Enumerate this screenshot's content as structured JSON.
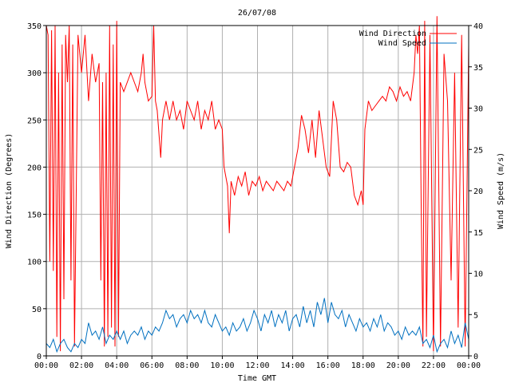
{
  "chart_data": {
    "type": "line",
    "title": "26/07/08",
    "xlabel": "Time GMT",
    "ylabel_left": "Wind Direction (Degrees)",
    "ylabel_right": "Wind Speed (m/s)",
    "x_ticks": [
      "00:00",
      "02:00",
      "04:00",
      "06:00",
      "08:00",
      "10:00",
      "12:00",
      "14:00",
      "16:00",
      "18:00",
      "20:00",
      "22:00",
      "00:00"
    ],
    "x_range_hours": [
      0,
      24
    ],
    "y_left_range": [
      0,
      350
    ],
    "y_left_ticks": [
      0,
      50,
      100,
      150,
      200,
      250,
      300,
      350
    ],
    "y_right_range": [
      0,
      40
    ],
    "y_right_ticks": [
      0,
      5,
      10,
      15,
      20,
      25,
      30,
      35,
      40
    ],
    "grid": true,
    "legend_position": "top-right",
    "series": [
      {
        "name": "Wind Direction",
        "axis": "left",
        "color": "#ff0000",
        "points": [
          [
            0.0,
            350
          ],
          [
            0.1,
            340
          ],
          [
            0.2,
            100
          ],
          [
            0.3,
            345
          ],
          [
            0.4,
            90
          ],
          [
            0.5,
            350
          ],
          [
            0.6,
            20
          ],
          [
            0.7,
            300
          ],
          [
            0.8,
            5
          ],
          [
            0.9,
            330
          ],
          [
            1.0,
            60
          ],
          [
            1.1,
            340
          ],
          [
            1.2,
            290
          ],
          [
            1.3,
            350
          ],
          [
            1.4,
            80
          ],
          [
            1.5,
            330
          ],
          [
            1.6,
            10
          ],
          [
            1.8,
            340
          ],
          [
            2.0,
            300
          ],
          [
            2.2,
            340
          ],
          [
            2.4,
            270
          ],
          [
            2.6,
            320
          ],
          [
            2.8,
            290
          ],
          [
            3.0,
            310
          ],
          [
            3.1,
            80
          ],
          [
            3.2,
            290
          ],
          [
            3.3,
            10
          ],
          [
            3.4,
            300
          ],
          [
            3.5,
            20
          ],
          [
            3.6,
            350
          ],
          [
            3.7,
            30
          ],
          [
            3.8,
            330
          ],
          [
            3.9,
            10
          ],
          [
            4.0,
            355
          ],
          [
            4.1,
            20
          ],
          [
            4.2,
            290
          ],
          [
            4.4,
            280
          ],
          [
            4.6,
            290
          ],
          [
            4.8,
            300
          ],
          [
            5.0,
            290
          ],
          [
            5.2,
            280
          ],
          [
            5.4,
            300
          ],
          [
            5.5,
            320
          ],
          [
            5.6,
            290
          ],
          [
            5.8,
            270
          ],
          [
            6.0,
            275
          ],
          [
            6.1,
            350
          ],
          [
            6.2,
            270
          ],
          [
            6.3,
            260
          ],
          [
            6.5,
            210
          ],
          [
            6.6,
            250
          ],
          [
            6.8,
            270
          ],
          [
            7.0,
            250
          ],
          [
            7.2,
            270
          ],
          [
            7.4,
            250
          ],
          [
            7.6,
            260
          ],
          [
            7.8,
            240
          ],
          [
            8.0,
            270
          ],
          [
            8.2,
            260
          ],
          [
            8.4,
            250
          ],
          [
            8.6,
            270
          ],
          [
            8.8,
            240
          ],
          [
            9.0,
            260
          ],
          [
            9.2,
            250
          ],
          [
            9.4,
            270
          ],
          [
            9.6,
            240
          ],
          [
            9.8,
            250
          ],
          [
            10.0,
            240
          ],
          [
            10.1,
            200
          ],
          [
            10.3,
            180
          ],
          [
            10.4,
            130
          ],
          [
            10.5,
            185
          ],
          [
            10.7,
            170
          ],
          [
            10.9,
            190
          ],
          [
            11.1,
            180
          ],
          [
            11.3,
            195
          ],
          [
            11.5,
            170
          ],
          [
            11.7,
            185
          ],
          [
            11.9,
            180
          ],
          [
            12.1,
            190
          ],
          [
            12.3,
            175
          ],
          [
            12.5,
            185
          ],
          [
            12.7,
            180
          ],
          [
            12.9,
            175
          ],
          [
            13.1,
            185
          ],
          [
            13.3,
            180
          ],
          [
            13.5,
            175
          ],
          [
            13.7,
            185
          ],
          [
            13.9,
            180
          ],
          [
            14.1,
            200
          ],
          [
            14.3,
            220
          ],
          [
            14.5,
            255
          ],
          [
            14.7,
            240
          ],
          [
            14.9,
            215
          ],
          [
            15.1,
            250
          ],
          [
            15.3,
            210
          ],
          [
            15.5,
            260
          ],
          [
            15.7,
            230
          ],
          [
            15.9,
            200
          ],
          [
            16.1,
            190
          ],
          [
            16.3,
            270
          ],
          [
            16.5,
            250
          ],
          [
            16.7,
            200
          ],
          [
            16.9,
            195
          ],
          [
            17.1,
            205
          ],
          [
            17.3,
            200
          ],
          [
            17.5,
            170
          ],
          [
            17.7,
            160
          ],
          [
            17.9,
            175
          ],
          [
            18.0,
            160
          ],
          [
            18.1,
            240
          ],
          [
            18.3,
            270
          ],
          [
            18.5,
            260
          ],
          [
            18.7,
            265
          ],
          [
            18.9,
            270
          ],
          [
            19.1,
            275
          ],
          [
            19.3,
            270
          ],
          [
            19.5,
            285
          ],
          [
            19.7,
            280
          ],
          [
            19.9,
            270
          ],
          [
            20.1,
            285
          ],
          [
            20.3,
            275
          ],
          [
            20.5,
            280
          ],
          [
            20.7,
            270
          ],
          [
            20.9,
            300
          ],
          [
            21.0,
            340
          ],
          [
            21.1,
            320
          ],
          [
            21.2,
            350
          ],
          [
            21.3,
            160
          ],
          [
            21.4,
            10
          ],
          [
            21.5,
            355
          ],
          [
            21.6,
            20
          ],
          [
            21.8,
            340
          ],
          [
            22.0,
            5
          ],
          [
            22.2,
            360
          ],
          [
            22.4,
            10
          ],
          [
            22.6,
            320
          ],
          [
            22.8,
            270
          ],
          [
            23.0,
            80
          ],
          [
            23.2,
            300
          ],
          [
            23.4,
            30
          ],
          [
            23.6,
            340
          ],
          [
            23.8,
            10
          ],
          [
            24.0,
            330
          ]
        ]
      },
      {
        "name": "Wind Speed",
        "axis": "right",
        "color": "#0070c0",
        "points": [
          [
            0.0,
            1.5
          ],
          [
            0.2,
            1.0
          ],
          [
            0.4,
            2.0
          ],
          [
            0.6,
            0.5
          ],
          [
            0.8,
            1.5
          ],
          [
            1.0,
            2.0
          ],
          [
            1.2,
            1.0
          ],
          [
            1.4,
            0.5
          ],
          [
            1.6,
            1.5
          ],
          [
            1.8,
            1.0
          ],
          [
            2.0,
            2.0
          ],
          [
            2.2,
            1.5
          ],
          [
            2.4,
            4.0
          ],
          [
            2.6,
            2.5
          ],
          [
            2.8,
            3.0
          ],
          [
            3.0,
            2.0
          ],
          [
            3.2,
            3.5
          ],
          [
            3.4,
            1.5
          ],
          [
            3.6,
            2.5
          ],
          [
            3.8,
            2.0
          ],
          [
            4.0,
            3.0
          ],
          [
            4.2,
            2.0
          ],
          [
            4.4,
            3.0
          ],
          [
            4.6,
            1.5
          ],
          [
            4.8,
            2.5
          ],
          [
            5.0,
            3.0
          ],
          [
            5.2,
            2.5
          ],
          [
            5.4,
            3.5
          ],
          [
            5.6,
            2.0
          ],
          [
            5.8,
            3.0
          ],
          [
            6.0,
            2.5
          ],
          [
            6.2,
            3.5
          ],
          [
            6.4,
            3.0
          ],
          [
            6.6,
            4.0
          ],
          [
            6.8,
            5.5
          ],
          [
            7.0,
            4.5
          ],
          [
            7.2,
            5.0
          ],
          [
            7.4,
            3.5
          ],
          [
            7.6,
            4.5
          ],
          [
            7.8,
            5.0
          ],
          [
            8.0,
            4.0
          ],
          [
            8.2,
            5.5
          ],
          [
            8.4,
            4.5
          ],
          [
            8.6,
            5.0
          ],
          [
            8.8,
            4.0
          ],
          [
            9.0,
            5.5
          ],
          [
            9.2,
            4.0
          ],
          [
            9.4,
            3.5
          ],
          [
            9.6,
            5.0
          ],
          [
            9.8,
            4.0
          ],
          [
            10.0,
            3.0
          ],
          [
            10.2,
            3.5
          ],
          [
            10.4,
            2.5
          ],
          [
            10.6,
            4.0
          ],
          [
            10.8,
            3.0
          ],
          [
            11.0,
            3.5
          ],
          [
            11.2,
            4.5
          ],
          [
            11.4,
            3.0
          ],
          [
            11.6,
            4.0
          ],
          [
            11.8,
            5.5
          ],
          [
            12.0,
            4.5
          ],
          [
            12.2,
            3.0
          ],
          [
            12.4,
            5.0
          ],
          [
            12.6,
            4.0
          ],
          [
            12.8,
            5.5
          ],
          [
            13.0,
            3.5
          ],
          [
            13.2,
            5.0
          ],
          [
            13.4,
            4.0
          ],
          [
            13.6,
            5.5
          ],
          [
            13.8,
            3.0
          ],
          [
            14.0,
            4.5
          ],
          [
            14.2,
            5.0
          ],
          [
            14.4,
            3.5
          ],
          [
            14.6,
            6.0
          ],
          [
            14.8,
            4.0
          ],
          [
            15.0,
            5.5
          ],
          [
            15.2,
            3.5
          ],
          [
            15.4,
            6.5
          ],
          [
            15.6,
            5.0
          ],
          [
            15.8,
            7.0
          ],
          [
            16.0,
            4.0
          ],
          [
            16.2,
            6.5
          ],
          [
            16.4,
            5.0
          ],
          [
            16.6,
            4.5
          ],
          [
            16.8,
            5.5
          ],
          [
            17.0,
            3.5
          ],
          [
            17.2,
            5.0
          ],
          [
            17.4,
            4.0
          ],
          [
            17.6,
            3.0
          ],
          [
            17.8,
            4.5
          ],
          [
            18.0,
            3.5
          ],
          [
            18.2,
            4.0
          ],
          [
            18.4,
            3.0
          ],
          [
            18.6,
            4.5
          ],
          [
            18.8,
            3.5
          ],
          [
            19.0,
            5.0
          ],
          [
            19.2,
            3.0
          ],
          [
            19.4,
            4.0
          ],
          [
            19.6,
            3.5
          ],
          [
            19.8,
            2.5
          ],
          [
            20.0,
            3.0
          ],
          [
            20.2,
            2.0
          ],
          [
            20.4,
            3.5
          ],
          [
            20.6,
            2.5
          ],
          [
            20.8,
            3.0
          ],
          [
            21.0,
            2.5
          ],
          [
            21.2,
            3.5
          ],
          [
            21.4,
            1.5
          ],
          [
            21.6,
            2.0
          ],
          [
            21.8,
            1.0
          ],
          [
            22.0,
            2.5
          ],
          [
            22.2,
            0.5
          ],
          [
            22.4,
            1.5
          ],
          [
            22.6,
            2.0
          ],
          [
            22.8,
            1.0
          ],
          [
            23.0,
            3.0
          ],
          [
            23.2,
            1.5
          ],
          [
            23.4,
            2.5
          ],
          [
            23.6,
            1.0
          ],
          [
            23.8,
            4.0
          ],
          [
            24.0,
            2.0
          ]
        ]
      }
    ]
  }
}
